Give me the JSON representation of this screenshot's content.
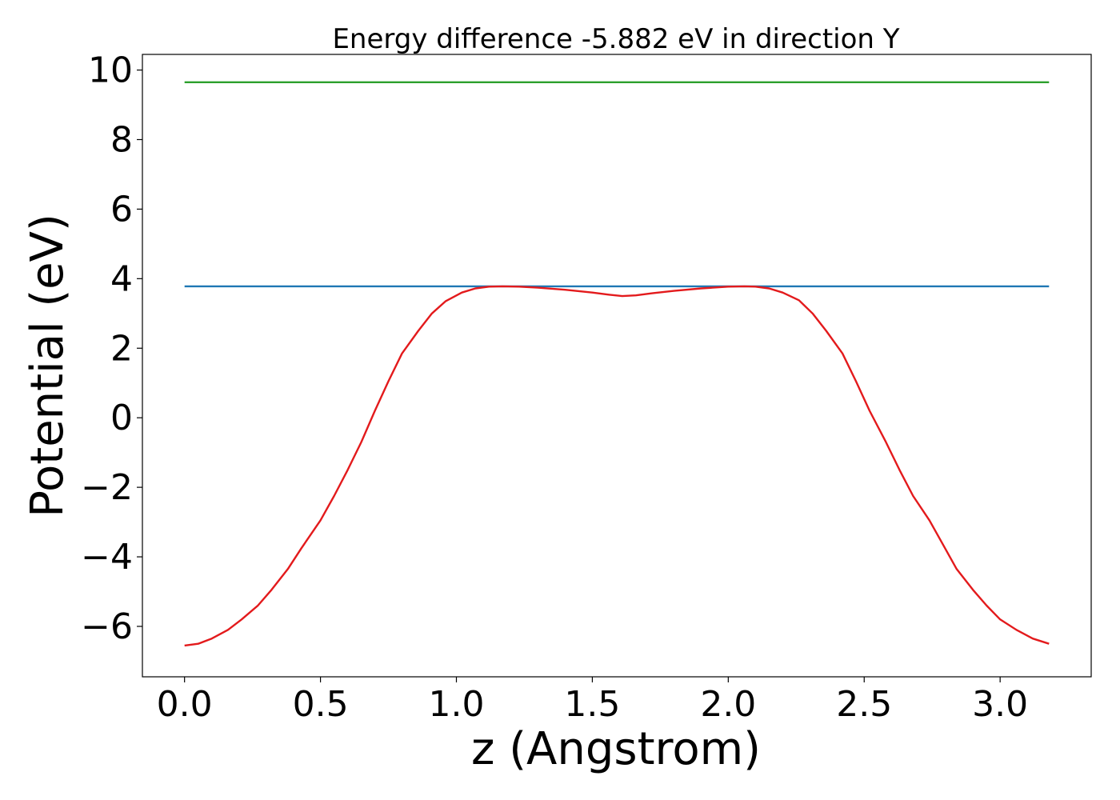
{
  "chart_data": {
    "type": "line",
    "title": "Energy difference -5.882 eV in direction Y",
    "xlabel": "z (Angstrom)",
    "ylabel": "Potential (eV)",
    "xlim": [
      -0.155,
      3.335
    ],
    "ylim": [
      -7.45,
      10.45
    ],
    "xticks": [
      0.0,
      0.5,
      1.0,
      1.5,
      2.0,
      2.5,
      3.0
    ],
    "xtick_labels": [
      "0.0",
      "0.5",
      "1.0",
      "1.5",
      "2.0",
      "2.5",
      "3.0"
    ],
    "yticks": [
      -6,
      -4,
      -2,
      0,
      2,
      4,
      6,
      8,
      10
    ],
    "ytick_labels": [
      "−6",
      "−4",
      "−2",
      "0",
      "2",
      "4",
      "6",
      "8",
      "10"
    ],
    "grid": false,
    "legend": "none",
    "series": [
      {
        "color": "#2ca02c",
        "x": [
          0.0,
          3.18
        ],
        "y": [
          9.65,
          9.65
        ]
      },
      {
        "color": "#1f77b4",
        "x": [
          0.0,
          3.18
        ],
        "y": [
          3.78,
          3.78
        ]
      },
      {
        "color": "#e31a1c",
        "x": [
          0.0,
          0.05,
          0.1,
          0.16,
          0.21,
          0.27,
          0.32,
          0.38,
          0.43,
          0.5,
          0.55,
          0.6,
          0.65,
          0.7,
          0.75,
          0.8,
          0.86,
          0.91,
          0.96,
          1.02,
          1.07,
          1.12,
          1.17,
          1.23,
          1.3,
          1.4,
          1.5,
          1.56,
          1.61,
          1.66,
          1.72,
          1.8,
          1.9,
          2.0,
          2.06,
          2.1,
          2.15,
          2.2,
          2.26,
          2.31,
          2.36,
          2.42,
          2.47,
          2.52,
          2.58,
          2.63,
          2.68,
          2.74,
          2.79,
          2.84,
          2.9,
          2.95,
          3.0,
          3.06,
          3.12,
          3.18
        ],
        "y": [
          -6.55,
          -6.5,
          -6.35,
          -6.1,
          -5.8,
          -5.4,
          -4.95,
          -4.35,
          -3.75,
          -2.95,
          -2.25,
          -1.5,
          -0.7,
          0.2,
          1.05,
          1.85,
          2.5,
          3.0,
          3.35,
          3.6,
          3.72,
          3.77,
          3.78,
          3.77,
          3.74,
          3.68,
          3.6,
          3.54,
          3.5,
          3.52,
          3.58,
          3.65,
          3.72,
          3.77,
          3.78,
          3.77,
          3.72,
          3.6,
          3.38,
          3.0,
          2.5,
          1.85,
          1.05,
          0.2,
          -0.7,
          -1.5,
          -2.25,
          -2.95,
          -3.65,
          -4.35,
          -4.95,
          -5.4,
          -5.8,
          -6.1,
          -6.35,
          -6.5
        ]
      }
    ]
  }
}
